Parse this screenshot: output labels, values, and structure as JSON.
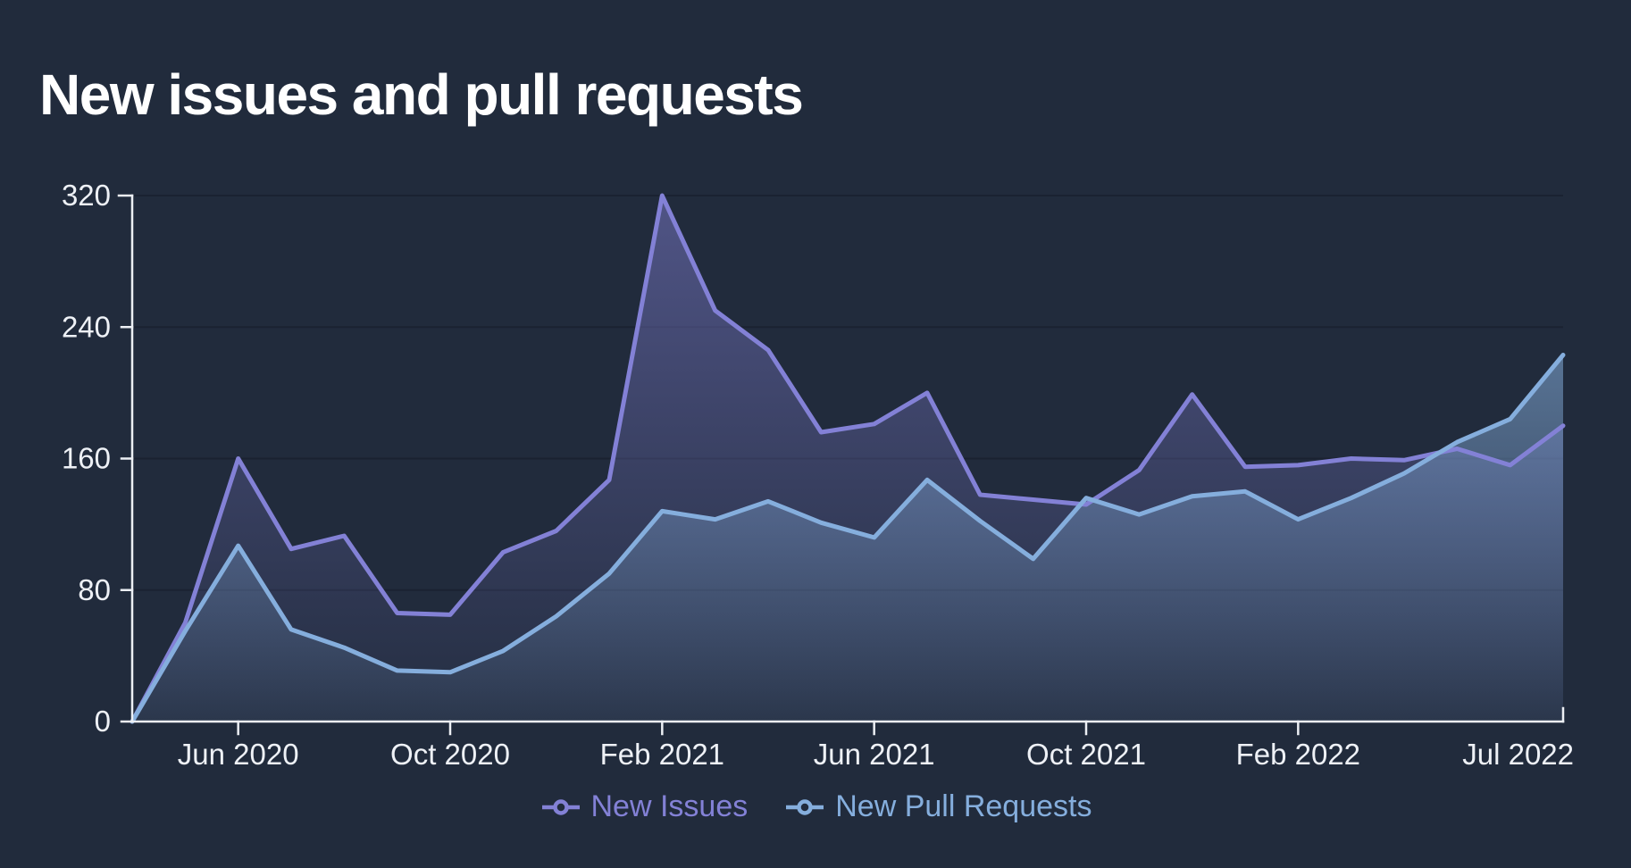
{
  "title": "New issues and pull requests",
  "colors": {
    "background": "#212b3c",
    "issues": "#8381d6",
    "pull_requests": "#85aedd",
    "axis": "#eceff4",
    "grid": "#1a2231",
    "tick_text": "#eef1f6",
    "title_text": "#ffffff"
  },
  "legend": [
    {
      "label": "New Issues",
      "color": "#8381d6"
    },
    {
      "label": "New Pull Requests",
      "color": "#85aedd"
    }
  ],
  "chart_data": {
    "type": "area",
    "title": "New issues and pull requests",
    "x": [
      "Apr 2020",
      "May 2020",
      "Jun 2020",
      "Jul 2020",
      "Aug 2020",
      "Sep 2020",
      "Oct 2020",
      "Nov 2020",
      "Dec 2020",
      "Jan 2021",
      "Feb 2021",
      "Mar 2021",
      "Apr 2021",
      "May 2021",
      "Jun 2021",
      "Jul 2021",
      "Aug 2021",
      "Sep 2021",
      "Oct 2021",
      "Nov 2021",
      "Dec 2021",
      "Jan 2022",
      "Feb 2022",
      "Mar 2022",
      "Apr 2022",
      "May 2022",
      "Jun 2022",
      "Jul 2022"
    ],
    "x_tick_labels": [
      "Jun 2020",
      "Oct 2020",
      "Feb 2021",
      "Jun 2021",
      "Oct 2021",
      "Feb 2022",
      "Jul 2022"
    ],
    "y_ticks": [
      0,
      80,
      160,
      240,
      320
    ],
    "ylim": [
      0,
      320
    ],
    "xlabel": "",
    "ylabel": "",
    "grid": "horizontal-only",
    "legend_position": "bottom-center",
    "series": [
      {
        "name": "New Issues",
        "color": "#8381d6",
        "values": [
          0,
          60,
          160,
          105,
          113,
          66,
          65,
          103,
          116,
          147,
          320,
          250,
          226,
          176,
          181,
          200,
          138,
          135,
          132,
          153,
          199,
          155,
          156,
          160,
          159,
          166,
          156,
          180
        ]
      },
      {
        "name": "New Pull Requests",
        "color": "#85aedd",
        "values": [
          0,
          55,
          107,
          56,
          45,
          31,
          30,
          43,
          64,
          90,
          128,
          123,
          134,
          121,
          112,
          147,
          122,
          99,
          136,
          126,
          137,
          140,
          123,
          136,
          151,
          170,
          184,
          223
        ]
      }
    ]
  }
}
